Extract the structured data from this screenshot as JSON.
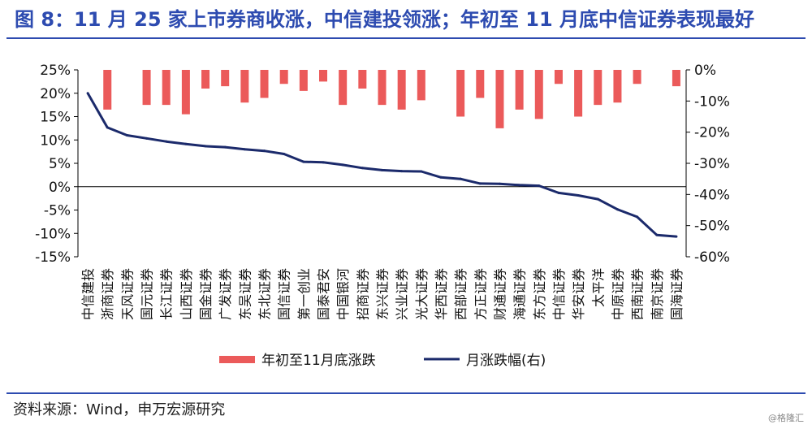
{
  "title": "图 8：11 月 25 家上市券商收涨，中信建投领涨；年初至 11 月底中信证券表现最好",
  "source": "资料来源：Wind，申万宏源研究",
  "watermark": "@格隆汇",
  "colors": {
    "bar": "#eb5a5a",
    "line": "#1b2a6b",
    "accent": "#2d4bb0"
  },
  "chart_data": {
    "type": "bar+line",
    "categories": [
      "中信建投",
      "浙商证券",
      "天风证券",
      "国元证券",
      "长江证券",
      "山西证券",
      "国金证券",
      "广发证券",
      "东吴证券",
      "东北证券",
      "国信证券",
      "第一创业",
      "国泰君安",
      "中国银河",
      "招商证券",
      "东兴证券",
      "兴业证券",
      "光大证券",
      "华西证券",
      "西部证券",
      "方正证券",
      "财通证券",
      "海通证券",
      "东方证券",
      "中信证券",
      "华安证券",
      "太平洋",
      "中原证券",
      "西南证券",
      "南京证券",
      "国海证券"
    ],
    "series": [
      {
        "name": "年初至11月底涨跌",
        "axis": "left",
        "type": "bar",
        "values": [
          0,
          -8.5,
          0,
          -7.5,
          -7.5,
          -9.5,
          -4,
          -3.5,
          -7,
          -6,
          -3,
          -4.5,
          -2.5,
          -7.5,
          -4,
          -7.5,
          -8.5,
          -6.5,
          0,
          -10,
          -6,
          -12.5,
          -8.5,
          -10.5,
          -3,
          -10,
          -7.5,
          -7,
          -3,
          0,
          -3.5
        ]
      },
      {
        "name": "月涨跌幅(右)",
        "axis": "right",
        "type": "line",
        "values": [
          -7.5,
          -18.5,
          -21,
          -22,
          -23,
          -23.8,
          -24.5,
          -24.8,
          -25.5,
          -26,
          -27,
          -29.5,
          -29.7,
          -30.5,
          -31.5,
          -32.2,
          -32.5,
          -32.6,
          -34.5,
          -35,
          -36.5,
          -36.6,
          -37,
          -37.2,
          -39.5,
          -40.3,
          -41.5,
          -44.8,
          -47.2,
          -53,
          -53.5
        ]
      }
    ],
    "left_axis": {
      "min": -15,
      "max": 25,
      "step": 5,
      "suffix": "%"
    },
    "right_axis": {
      "min": -60,
      "max": 0,
      "step": 10,
      "suffix": "%"
    },
    "legend": {
      "position": "bottom",
      "items": [
        "年初至11月底涨跌",
        "月涨跌幅(右)"
      ]
    },
    "grid": false
  }
}
